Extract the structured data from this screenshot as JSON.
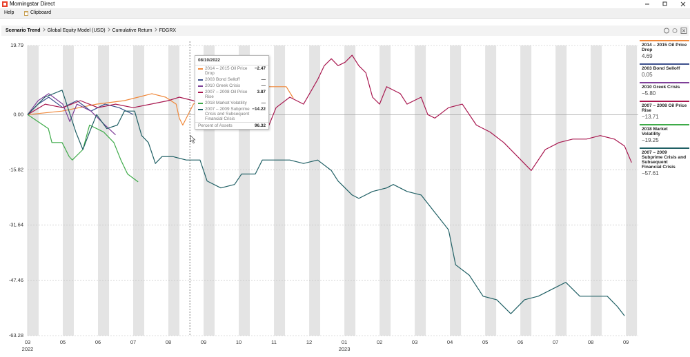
{
  "window": {
    "title": "Morningstar Direct",
    "menu": [
      "Help",
      "Clipboard"
    ]
  },
  "header": {
    "breadcrumb": [
      "Scenario Trend",
      "Global Equity Model (USD)",
      "Cumulative Return",
      "FDGRX"
    ]
  },
  "chart_data": {
    "type": "line",
    "xlim": [
      0,
      17.35
    ],
    "xticks": [
      {
        "value": 0,
        "label": "03"
      },
      {
        "value": 1,
        "label": "05"
      },
      {
        "value": 2,
        "label": "06"
      },
      {
        "value": 3,
        "label": "07"
      },
      {
        "value": 4,
        "label": "08"
      },
      {
        "value": 5,
        "label": "09"
      },
      {
        "value": 6,
        "label": "10"
      },
      {
        "value": 7,
        "label": "11"
      },
      {
        "value": 8,
        "label": "12"
      },
      {
        "value": 9,
        "label": "01"
      },
      {
        "value": 10,
        "label": "02"
      },
      {
        "value": 11,
        "label": "03"
      },
      {
        "value": 12,
        "label": "04"
      },
      {
        "value": 13,
        "label": "05"
      },
      {
        "value": 14,
        "label": "06"
      },
      {
        "value": 15,
        "label": "07"
      },
      {
        "value": 16,
        "label": "08"
      },
      {
        "value": 17,
        "label": "09"
      }
    ],
    "year_labels": [
      {
        "value": 0,
        "label": "2022"
      },
      {
        "value": 9,
        "label": "2023"
      }
    ],
    "ylim": [
      -63.28,
      19.79
    ],
    "yticks": [
      -63.28,
      -47.46,
      -31.64,
      -15.82,
      {
        "value": 0,
        "label": "0.00"
      },
      19.79
    ],
    "grid": true,
    "series": [
      {
        "name": "2014 – 2015 Oil Price Drop",
        "color": "#f0883a",
        "legend_value": "4.69",
        "x": [
          0,
          0.98,
          1.96,
          2.75,
          3.14,
          3.53,
          3.92,
          4.22,
          4.31,
          4.41,
          4.71,
          5.1,
          5.69,
          6.27,
          6.67,
          7.06,
          7.35,
          7.55
        ],
        "values": [
          0,
          1,
          3,
          4,
          5,
          6,
          5,
          3,
          -1,
          -3,
          3,
          6,
          7,
          6,
          8,
          8,
          8,
          4.69
        ]
      },
      {
        "name": "2003 Bond Selloff",
        "color": "#3c4f8c",
        "legend_value": "0.05",
        "x": [
          0,
          0.3,
          0.6,
          1,
          1.4,
          1.8,
          2.2,
          2.6,
          3.0
        ],
        "values": [
          0,
          3,
          5,
          2,
          4,
          1,
          3,
          2,
          0.05
        ]
      },
      {
        "name": "2010 Greek Crisis",
        "color": "#7e3f98",
        "legend_value": "−5.80",
        "x": [
          0,
          0.3,
          0.6,
          1,
          1.2,
          1.4,
          1.8,
          2.2,
          2.5
        ],
        "values": [
          0,
          4,
          6,
          3,
          -2,
          3,
          1,
          -3,
          -5.8
        ]
      },
      {
        "name": "2007 – 2008 Oil Price Rise",
        "color": "#a8174f",
        "legend_value": "−13.71",
        "x": [
          0,
          0.5,
          1,
          1.5,
          2,
          2.5,
          3,
          3.5,
          4,
          4.31,
          4.71,
          5.1,
          5.49,
          5.88,
          6.27,
          6.67,
          6.86,
          7.06,
          7.45,
          7.84,
          8.24,
          8.43,
          8.63,
          8.82,
          9.02,
          9.22,
          9.41,
          9.61,
          9.8,
          10.0,
          10.2,
          10.59,
          10.78,
          11.18,
          11.37,
          11.57,
          11.96,
          12.35,
          12.75,
          13.14,
          13.53,
          13.92,
          14.31,
          14.71,
          15.1,
          15.49,
          15.88,
          16.27,
          16.67,
          16.96,
          17.16
        ],
        "values": [
          0,
          3,
          2,
          4,
          2,
          3,
          2,
          3,
          4,
          5,
          4,
          2,
          -2,
          -4,
          -2,
          -4,
          -3,
          2,
          5,
          3,
          10,
          14,
          16,
          14,
          15,
          17,
          14,
          12,
          5,
          3,
          8,
          6,
          3,
          5,
          0,
          -1,
          2,
          3,
          -3,
          -5,
          -8,
          -12,
          -16,
          -10,
          -8,
          -7,
          -7,
          -6,
          -7,
          -9,
          -13.71
        ]
      },
      {
        "name": "2018 Market Volatility",
        "color": "#3daa48",
        "legend_value": "−19.25",
        "x": [
          0,
          0.59,
          0.69,
          0.98,
          1.18,
          1.27,
          1.57,
          1.76,
          2.16,
          2.45,
          2.65,
          2.84,
          3.14
        ],
        "values": [
          0,
          -4,
          -8,
          -8,
          -12,
          -13,
          -10,
          -3,
          -5,
          -8,
          -13,
          -17,
          -19.25
        ]
      },
      {
        "name": "2007 – 2009 Subprime Crisis and Subsequent Financial Crisis",
        "color": "#1f5f64",
        "legend_value": "−57.61",
        "x": [
          0,
          0.49,
          0.98,
          1.37,
          1.57,
          1.76,
          1.96,
          2.25,
          2.55,
          2.75,
          3.04,
          3.24,
          3.43,
          3.63,
          3.82,
          4.12,
          4.51,
          4.9,
          5.1,
          5.49,
          5.88,
          6.08,
          6.47,
          6.67,
          7.06,
          7.45,
          7.84,
          8.24,
          8.63,
          8.82,
          9.22,
          9.41,
          9.8,
          10.2,
          10.39,
          10.78,
          11.18,
          11.57,
          11.96,
          12.16,
          12.55,
          12.94,
          13.33,
          13.73,
          14.12,
          14.51,
          14.9,
          15.29,
          15.69,
          16.08,
          16.47,
          16.76,
          16.96
        ],
        "values": [
          0,
          5,
          7,
          -5,
          -10,
          -5,
          0,
          -4,
          -3,
          1,
          1,
          -6,
          -8,
          -14,
          -12,
          -12,
          -13,
          -13,
          -19,
          -21,
          -20,
          -17,
          -17,
          -13,
          -13,
          -13,
          -14,
          -13,
          -16,
          -19,
          -23,
          -24,
          -22,
          -21,
          -20,
          -22,
          -23,
          -28,
          -33,
          -43,
          -46,
          -52,
          -53,
          -57,
          -53,
          -52,
          -50,
          -48,
          -52,
          -52,
          -52,
          -55,
          -57.61
        ]
      }
    ],
    "tooltip": {
      "x": 4.61,
      "date": "08/10/2022",
      "values": [
        "−2.47",
        "—",
        "—",
        "3.87",
        "—",
        "−14.22"
      ],
      "footer_label": "Percent of Assets",
      "footer_value": "96.32"
    }
  }
}
